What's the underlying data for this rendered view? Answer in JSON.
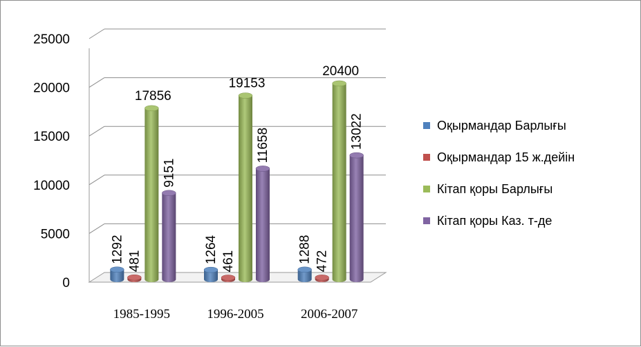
{
  "chart_data": {
    "type": "bar",
    "categories": [
      "1985-1995",
      "1996-2005",
      "2006-2007"
    ],
    "series": [
      {
        "name": "Оқырмандар Барлығы",
        "values": [
          1292,
          1264,
          1288
        ],
        "color": "#4f81bd"
      },
      {
        "name": "Оқырмандар 15 ж.дейін",
        "values": [
          481,
          461,
          472
        ],
        "color": "#c0504d"
      },
      {
        "name": "Кітап қоры Барлығы",
        "values": [
          17856,
          19153,
          20400
        ],
        "color": "#9bbb59"
      },
      {
        "name": "Кітап қоры Каз. т-де",
        "values": [
          9151,
          11658,
          13022
        ],
        "color": "#8064a2"
      }
    ],
    "ylim": [
      0,
      25000
    ],
    "yticks": [
      "0",
      "5000",
      "10000",
      "15000",
      "20000",
      "25000"
    ],
    "legend": "right",
    "grid": true
  }
}
